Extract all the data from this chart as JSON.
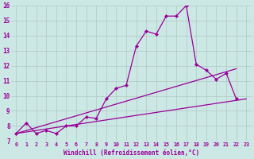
{
  "xlabel": "Windchill (Refroidissement éolien,°C)",
  "background_color": "#cce8e4",
  "grid_color": "#b0c8c4",
  "line_color": "#990099",
  "xlim": [
    -0.5,
    23.5
  ],
  "ylim": [
    7,
    16
  ],
  "xticks": [
    0,
    1,
    2,
    3,
    4,
    5,
    6,
    7,
    8,
    9,
    10,
    11,
    12,
    13,
    14,
    15,
    16,
    17,
    18,
    19,
    20,
    21,
    22,
    23
  ],
  "yticks": [
    7,
    8,
    9,
    10,
    11,
    12,
    13,
    14,
    15,
    16
  ],
  "main_x": [
    0,
    1,
    2,
    3,
    4,
    5,
    6,
    7,
    8,
    9,
    10,
    11,
    12,
    13,
    14,
    15,
    16,
    17,
    18,
    19,
    20,
    21,
    22
  ],
  "main_y": [
    7.5,
    8.2,
    7.5,
    7.7,
    7.5,
    8.0,
    8.0,
    8.6,
    8.5,
    9.8,
    10.5,
    10.7,
    13.3,
    14.3,
    14.1,
    15.3,
    15.3,
    16.0,
    12.1,
    11.7,
    11.1,
    11.5,
    9.8
  ],
  "trend1_x": [
    0,
    22
  ],
  "trend1_y": [
    7.5,
    11.8
  ],
  "trend2_x": [
    0,
    23
  ],
  "trend2_y": [
    7.5,
    9.8
  ]
}
